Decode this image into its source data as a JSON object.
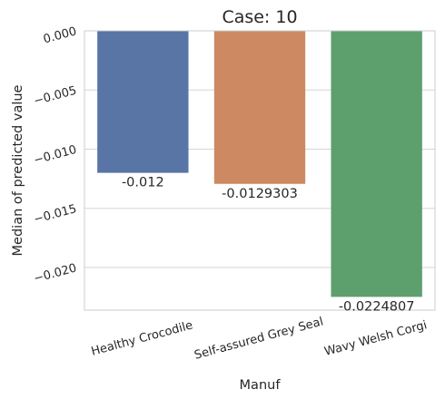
{
  "chart_data": {
    "type": "bar",
    "title": "Case: 10",
    "xlabel": "Manuf",
    "ylabel": "Median of predicted value",
    "categories": [
      "Healthy Crocodile",
      "Self-assured Grey Seal",
      "Wavy Welsh Corgi"
    ],
    "values": [
      -0.012,
      -0.0129303,
      -0.0224807
    ],
    "data_labels": [
      "-0.012",
      "-0.0129303",
      "-0.0224807"
    ],
    "colors": [
      "#5875a6",
      "#cd8a62",
      "#5e9f6e"
    ],
    "ylim": [
      -0.0236,
      0
    ],
    "yticks": [
      0,
      -0.005,
      -0.01,
      -0.015,
      -0.02
    ],
    "ytick_labels": [
      "0.000",
      "−0.005",
      "−0.010",
      "−0.015",
      "−0.020"
    ],
    "grid": true,
    "legend": "none"
  }
}
